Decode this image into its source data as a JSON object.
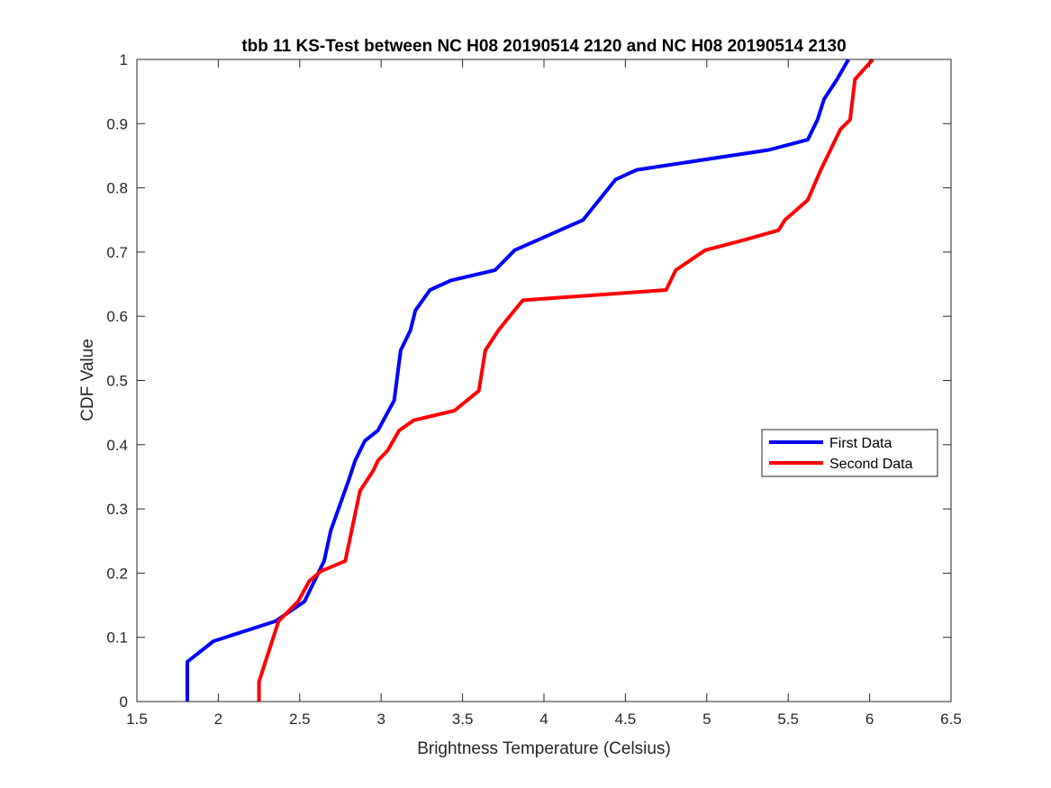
{
  "chart_data": {
    "type": "line",
    "title": "tbb 11 KS-Test between NC H08 20190514 2120 and NC H08 20190514 2130",
    "xlabel": "Brightness Temperature (Celsius)",
    "ylabel": "CDF Value",
    "xlim": [
      1.5,
      6.5
    ],
    "ylim": [
      0,
      1
    ],
    "xticks": [
      1.5,
      2,
      2.5,
      3,
      3.5,
      4,
      4.5,
      5,
      5.5,
      6,
      6.5
    ],
    "xtick_labels": [
      "1.5",
      "2",
      "2.5",
      "3",
      "3.5",
      "4",
      "4.5",
      "5",
      "5.5",
      "6",
      "6.5"
    ],
    "yticks": [
      0,
      0.1,
      0.2,
      0.3,
      0.4,
      0.5,
      0.6,
      0.7,
      0.8,
      0.9,
      1
    ],
    "ytick_labels": [
      "0",
      "0.1",
      "0.2",
      "0.3",
      "0.4",
      "0.5",
      "0.6",
      "0.7",
      "0.8",
      "0.9",
      "1"
    ],
    "grid": false,
    "legend_position": "right",
    "series": [
      {
        "name": "First Data",
        "color": "#0000ff",
        "x": [
          1.81,
          1.81,
          1.97,
          2.35,
          2.53,
          2.65,
          2.69,
          2.8,
          2.84,
          2.9,
          2.98,
          3.08,
          3.12,
          3.18,
          3.21,
          3.3,
          3.43,
          3.7,
          3.82,
          4.24,
          4.44,
          4.57,
          5.38,
          5.62,
          5.68,
          5.72,
          5.8,
          5.87
        ],
        "y": [
          0,
          0.062,
          0.094,
          0.125,
          0.156,
          0.219,
          0.266,
          0.344,
          0.375,
          0.406,
          0.422,
          0.469,
          0.547,
          0.578,
          0.609,
          0.641,
          0.656,
          0.672,
          0.703,
          0.75,
          0.813,
          0.828,
          0.859,
          0.875,
          0.906,
          0.938,
          0.969,
          1.0
        ]
      },
      {
        "name": "Second Data",
        "color": "#ff0000",
        "x": [
          2.25,
          2.25,
          2.37,
          2.49,
          2.56,
          2.63,
          2.78,
          2.87,
          2.95,
          2.98,
          3.04,
          3.11,
          3.2,
          3.45,
          3.6,
          3.64,
          3.72,
          3.77,
          3.87,
          4.75,
          4.81,
          4.99,
          5.23,
          5.44,
          5.48,
          5.62,
          5.7,
          5.82,
          5.88,
          5.91,
          6.02
        ],
        "y": [
          0,
          0.031,
          0.125,
          0.156,
          0.188,
          0.203,
          0.219,
          0.328,
          0.359,
          0.375,
          0.391,
          0.422,
          0.438,
          0.453,
          0.484,
          0.547,
          0.578,
          0.594,
          0.625,
          0.641,
          0.672,
          0.703,
          0.719,
          0.734,
          0.75,
          0.781,
          0.828,
          0.891,
          0.906,
          0.969,
          1.0
        ]
      }
    ]
  }
}
